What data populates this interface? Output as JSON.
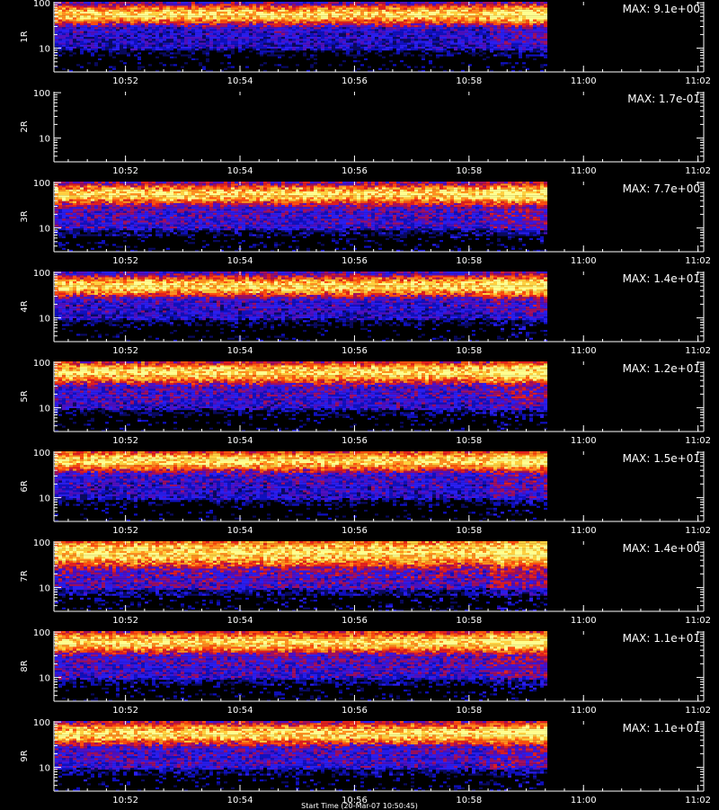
{
  "chart_data": {
    "type": "heatmap",
    "x": {
      "tick_labels": [
        "10:52",
        "10:54",
        "10:56",
        "10:58",
        "11:00",
        "11:02"
      ],
      "tick_minutes": [
        52,
        54,
        56,
        58,
        60,
        62
      ],
      "range_minutes": [
        50.75,
        62.1
      ],
      "data_end_minutes": 59.35
    },
    "y": {
      "scale": "log",
      "tick_labels": [
        "10",
        "100"
      ],
      "tick_values": [
        10,
        100
      ],
      "range": [
        3,
        105
      ]
    },
    "panels": [
      {
        "name": "1R",
        "max_label": "MAX: 9.1e+00",
        "max": 9.1,
        "has_data": true,
        "band_center": 55,
        "band_width": 0.28,
        "bg_level": 0.22
      },
      {
        "name": "2R",
        "max_label": "MAX: 1.7e-01",
        "max": 0.17,
        "has_data": false,
        "band_center": 50,
        "band_width": 0.3,
        "bg_level": 0.0
      },
      {
        "name": "3R",
        "max_label": "MAX: 7.7e+00",
        "max": 7.7,
        "has_data": true,
        "band_center": 55,
        "band_width": 0.3,
        "bg_level": 0.3
      },
      {
        "name": "4R",
        "max_label": "MAX: 1.4e+01",
        "max": 14,
        "has_data": true,
        "band_center": 50,
        "band_width": 0.3,
        "bg_level": 0.25
      },
      {
        "name": "5R",
        "max_label": "MAX: 1.2e+01",
        "max": 12,
        "has_data": true,
        "band_center": 60,
        "band_width": 0.32,
        "bg_level": 0.28
      },
      {
        "name": "6R",
        "max_label": "MAX: 1.5e+01",
        "max": 15,
        "has_data": true,
        "band_center": 65,
        "band_width": 0.3,
        "bg_level": 0.25
      },
      {
        "name": "7R",
        "max_label": "MAX: 1.4e+00",
        "max": 1.4,
        "has_data": true,
        "band_center": 60,
        "band_width": 0.45,
        "bg_level": 0.35
      },
      {
        "name": "8R",
        "max_label": "MAX: 1.1e+01",
        "max": 11,
        "has_data": true,
        "band_center": 60,
        "band_width": 0.32,
        "bg_level": 0.3
      },
      {
        "name": "9R",
        "max_label": "MAX: 1.1e+01",
        "max": 11,
        "has_data": true,
        "band_center": 55,
        "band_width": 0.32,
        "bg_level": 0.3
      }
    ],
    "colormap": [
      "#000000",
      "#0a0a60",
      "#1010c0",
      "#2a1ef0",
      "#5010c0",
      "#a01060",
      "#e02020",
      "#ff5010",
      "#ff9020",
      "#ffd040",
      "#ffff90"
    ]
  },
  "footer": "Start Time (20-Mar-07 10:50:45)"
}
